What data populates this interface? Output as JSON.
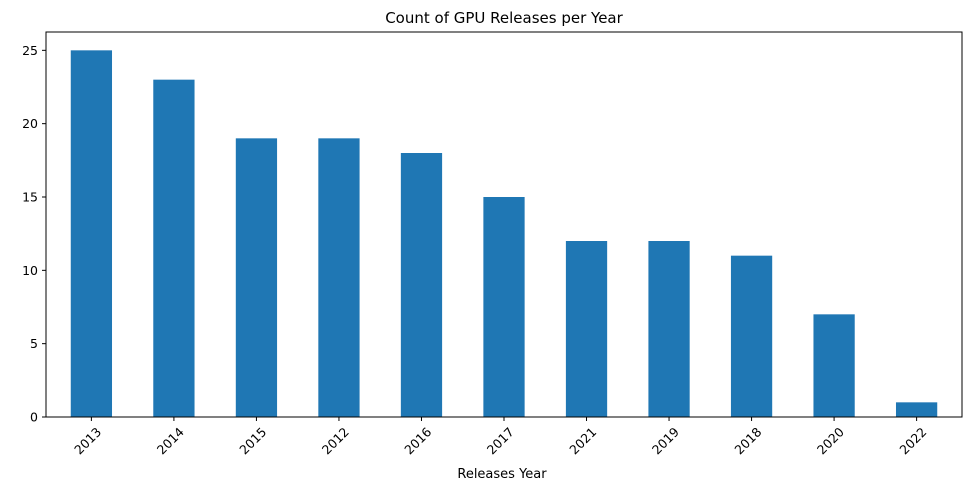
{
  "chart_data": {
    "type": "bar",
    "title": "Count of GPU Releases per Year",
    "xlabel": "Releases Year",
    "ylabel": "",
    "categories": [
      "2013",
      "2014",
      "2015",
      "2012",
      "2016",
      "2017",
      "2021",
      "2019",
      "2018",
      "2020",
      "2022"
    ],
    "values": [
      25,
      23,
      19,
      19,
      18,
      15,
      12,
      12,
      11,
      7,
      1
    ],
    "ylim": [
      0,
      26.25
    ],
    "yticks": [
      0,
      5,
      10,
      15,
      20,
      25
    ],
    "bar_color": "#1f77b4",
    "grid": false,
    "legend": false
  }
}
